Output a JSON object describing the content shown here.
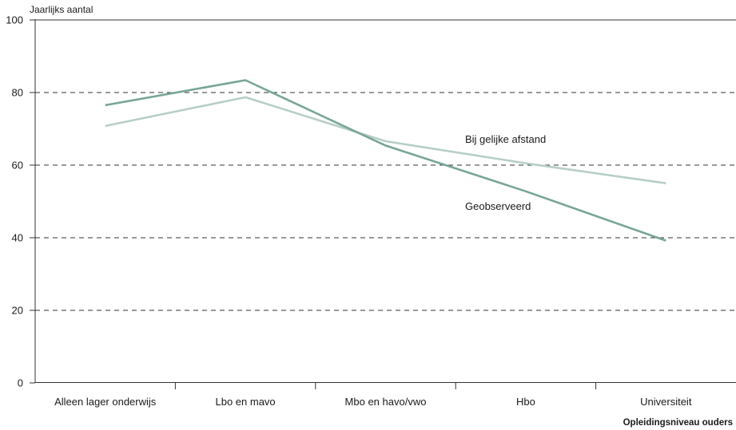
{
  "chart_data": {
    "type": "line",
    "ylabel": "Jaarlijks aantal",
    "xlabel": "Opleidingsniveau ouders",
    "categories": [
      "Alleen lager onderwijs",
      "Lbo en mavo",
      "Mbo en havo/vwo",
      "Hbo",
      "Universiteit"
    ],
    "ylim": [
      0,
      100
    ],
    "yticks": [
      0,
      20,
      40,
      60,
      80,
      100
    ],
    "grid": "dashed horizontal at 20, 40, 60, 80",
    "series": [
      {
        "name": "Bij gelijke afstand",
        "values": [
          70.8,
          78.7,
          66.6,
          60.5,
          55.0
        ],
        "color": "#b7cec7"
      },
      {
        "name": "Geobserveerd",
        "values": [
          76.5,
          83.4,
          65.4,
          52.8,
          39.2
        ],
        "color": "#78a597"
      }
    ]
  }
}
